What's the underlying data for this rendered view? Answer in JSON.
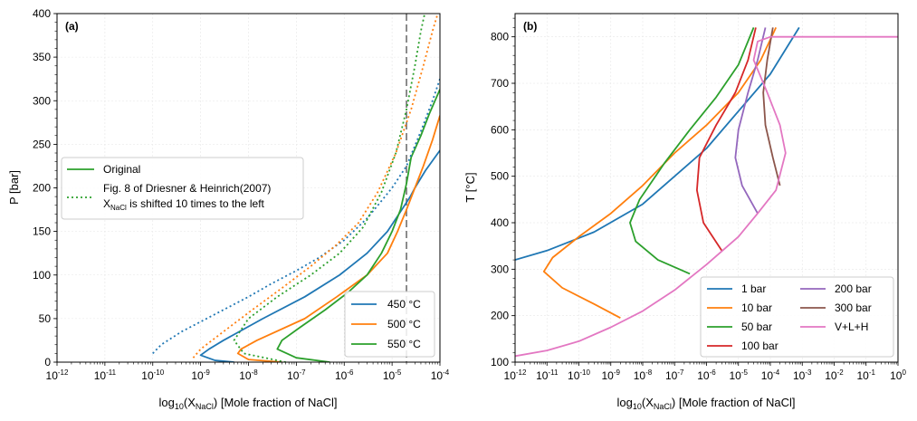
{
  "figure": {
    "colors": {
      "blue": "#1f77b4",
      "orange": "#ff7f0e",
      "green": "#2ca02c",
      "red": "#d62728",
      "purple": "#9467bd",
      "brown": "#8c564b",
      "pink": "#e377c2",
      "dashed_line": "#707070"
    }
  },
  "chart_data": [
    {
      "panel_label": "(a)",
      "type": "line",
      "xscale": "log",
      "xlim": [
        1e-12,
        0.0001
      ],
      "ylim": [
        0,
        400
      ],
      "xlabel_main": "log",
      "xlabel_main_sub": "10",
      "xlabel_paren_open": "(X",
      "xlabel_paren_sub": "NaCl",
      "xlabel_rest": ") [Mole fraction of NaCl]",
      "ylabel": "P [bar]",
      "x_ticks": [
        -12,
        -11,
        -10,
        -9,
        -8,
        -7,
        -6,
        -5,
        -4
      ],
      "y_ticks": [
        "0",
        "50",
        "100",
        "150",
        "200",
        "250",
        "300",
        "350",
        "400"
      ],
      "vertical_dashed_line_x": 2e-05,
      "grid": true,
      "legend_style": {
        "placement": "center-left",
        "original_label": "Original",
        "shifted_label_line1": "Fig. 8 of Driesner & Heinrich(2007)",
        "shifted_label_line2_pre": "X",
        "shifted_label_line2_sub": "NaCl",
        "shifted_label_line2_post": " is shifted 10 times to the left"
      },
      "legend_temps": {
        "placement": "lower-right",
        "entries": [
          {
            "label": "450 °C",
            "color": "#1f77b4"
          },
          {
            "label": "500 °C",
            "color": "#ff7f0e"
          },
          {
            "label": "550 °C",
            "color": "#2ca02c"
          }
        ]
      },
      "series": [
        {
          "name": "450 °C",
          "style": "solid",
          "color": "#1f77b4",
          "points": [
            [
              5e-09,
              0
            ],
            [
              2e-09,
              2
            ],
            [
              1e-09,
              8
            ],
            [
              1.5e-09,
              15
            ],
            [
              3e-09,
              25
            ],
            [
              2e-08,
              50
            ],
            [
              1.5e-07,
              75
            ],
            [
              8e-07,
              100
            ],
            [
              3e-06,
              125
            ],
            [
              8e-06,
              150
            ],
            [
              1.6e-05,
              175
            ],
            [
              2.4e-05,
              190
            ],
            [
              3e-05,
              200
            ],
            [
              5e-05,
              220
            ],
            [
              0.0001,
              243
            ]
          ]
        },
        {
          "name": "500 °C",
          "style": "solid",
          "color": "#ff7f0e",
          "points": [
            [
              5e-08,
              0
            ],
            [
              1e-08,
              3
            ],
            [
              6e-09,
              10
            ],
            [
              7e-09,
              15
            ],
            [
              1.5e-08,
              25
            ],
            [
              1.5e-07,
              50
            ],
            [
              7e-07,
              75
            ],
            [
              3e-06,
              100
            ],
            [
              8e-06,
              125
            ],
            [
              1.3e-05,
              150
            ],
            [
              2e-05,
              175
            ],
            [
              3e-05,
              200
            ],
            [
              4.5e-05,
              225
            ],
            [
              7e-05,
              255
            ],
            [
              0.0001,
              283
            ]
          ]
        },
        {
          "name": "550 °C",
          "style": "solid",
          "color": "#2ca02c",
          "points": [
            [
              5e-07,
              0
            ],
            [
              1e-07,
              5
            ],
            [
              4e-08,
              15
            ],
            [
              5e-08,
              25
            ],
            [
              1.2e-07,
              40
            ],
            [
              4e-07,
              60
            ],
            [
              1.2e-06,
              80
            ],
            [
              3e-06,
              100
            ],
            [
              6e-06,
              125
            ],
            [
              1e-05,
              150
            ],
            [
              1.5e-05,
              175
            ],
            [
              2e-05,
              205
            ],
            [
              2.5e-05,
              235
            ],
            [
              4e-05,
              260
            ],
            [
              6e-05,
              285
            ],
            [
              0.0001,
              313
            ]
          ]
        },
        {
          "name": "450 °C (Driesner & Heinrich 2007, shifted)",
          "style": "dotted",
          "color": "#1f77b4",
          "points": [
            [
              1e-10,
              10
            ],
            [
              1.5e-10,
              20
            ],
            [
              4e-10,
              35
            ],
            [
              2e-09,
              55
            ],
            [
              1e-08,
              75
            ],
            [
              3e-08,
              90
            ],
            [
              1e-07,
              105
            ],
            [
              3e-07,
              120
            ],
            [
              1e-06,
              140
            ],
            [
              3e-06,
              165
            ],
            [
              6e-06,
              185
            ],
            [
              1e-05,
              200
            ],
            [
              2e-05,
              225
            ],
            [
              4e-05,
              265
            ],
            [
              7e-05,
              300
            ],
            [
              0.0001,
              325
            ]
          ]
        },
        {
          "name": "500 °C (Driesner & Heinrich 2007, shifted)",
          "style": "dotted",
          "color": "#ff7f0e",
          "points": [
            [
              7e-10,
              5
            ],
            [
              1e-09,
              15
            ],
            [
              3e-09,
              35
            ],
            [
              1.2e-08,
              60
            ],
            [
              5e-08,
              85
            ],
            [
              2e-07,
              110
            ],
            [
              7e-07,
              135
            ],
            [
              2e-06,
              160
            ],
            [
              5e-06,
              195
            ],
            [
              1.2e-05,
              240
            ],
            [
              2.5e-05,
              290
            ],
            [
              4.5e-05,
              340
            ],
            [
              7e-05,
              380
            ],
            [
              9e-05,
              400
            ]
          ]
        },
        {
          "name": "550 °C (Driesner & Heinrich 2007, shifted)",
          "style": "dotted",
          "color": "#2ca02c",
          "points": [
            [
              6e-08,
              0
            ],
            [
              8e-09,
              10
            ],
            [
              5e-09,
              25
            ],
            [
              1e-08,
              50
            ],
            [
              4e-08,
              75
            ],
            [
              2e-07,
              100
            ],
            [
              8e-07,
              125
            ],
            [
              2.5e-06,
              155
            ],
            [
              6e-06,
              195
            ],
            [
              1.2e-05,
              240
            ],
            [
              2e-05,
              290
            ],
            [
              3e-05,
              340
            ],
            [
              4e-05,
              380
            ],
            [
              4.8e-05,
              400
            ]
          ]
        }
      ]
    },
    {
      "panel_label": "(b)",
      "type": "line",
      "xscale": "log",
      "xlim": [
        1e-12,
        1
      ],
      "ylim": [
        100,
        850
      ],
      "xlabel_main": "log",
      "xlabel_main_sub": "10",
      "xlabel_paren_open": "(X",
      "xlabel_paren_sub": "NaCl",
      "xlabel_rest": ") [Mole fraction of NaCl]",
      "ylabel": "T [°C]",
      "x_ticks": [
        -12,
        -11,
        -10,
        -9,
        -8,
        -7,
        -6,
        -5,
        -4,
        -3,
        -2,
        -1,
        0
      ],
      "y_ticks": [
        "100",
        "200",
        "300",
        "400",
        "500",
        "600",
        "700",
        "800"
      ],
      "grid": true,
      "legend": {
        "placement": "lower-right",
        "columns": 2,
        "entries": [
          {
            "label": "1 bar",
            "color": "#1f77b4"
          },
          {
            "label": "10 bar",
            "color": "#ff7f0e"
          },
          {
            "label": "50 bar",
            "color": "#2ca02c"
          },
          {
            "label": "100 bar",
            "color": "#d62728"
          },
          {
            "label": "200 bar",
            "color": "#9467bd"
          },
          {
            "label": "300 bar",
            "color": "#8c564b"
          },
          {
            "label": "V+L+H",
            "color": "#e377c2"
          }
        ]
      },
      "series": [
        {
          "name": "1 bar",
          "color": "#1f77b4",
          "points": [
            [
              1e-12,
              320
            ],
            [
              1e-11,
              340
            ],
            [
              3e-10,
              380
            ],
            [
              1e-08,
              440
            ],
            [
              1e-07,
              500
            ],
            [
              1e-06,
              560
            ],
            [
              1e-05,
              640
            ],
            [
              0.0001,
              720
            ],
            [
              0.0008,
              820
            ]
          ]
        },
        {
          "name": "10 bar",
          "color": "#ff7f0e",
          "points": [
            [
              2e-09,
              195
            ],
            [
              3e-10,
              225
            ],
            [
              3e-11,
              260
            ],
            [
              8e-12,
              295
            ],
            [
              1.5e-11,
              325
            ],
            [
              1e-10,
              370
            ],
            [
              1e-09,
              420
            ],
            [
              1e-08,
              480
            ],
            [
              1e-07,
              550
            ],
            [
              1e-06,
              610
            ],
            [
              1e-05,
              680
            ],
            [
              5e-05,
              750
            ],
            [
              0.00015,
              820
            ]
          ]
        },
        {
          "name": "50 bar",
          "color": "#2ca02c",
          "points": [
            [
              3e-07,
              290
            ],
            [
              3e-08,
              320
            ],
            [
              6e-09,
              360
            ],
            [
              4e-09,
              400
            ],
            [
              8e-09,
              450
            ],
            [
              5e-08,
              530
            ],
            [
              3e-07,
              600
            ],
            [
              2e-06,
              670
            ],
            [
              1e-05,
              740
            ],
            [
              3e-05,
              820
            ]
          ]
        },
        {
          "name": "100 bar",
          "color": "#d62728",
          "points": [
            [
              3e-06,
              340
            ],
            [
              8e-07,
              400
            ],
            [
              5e-07,
              470
            ],
            [
              6e-07,
              540
            ],
            [
              2e-06,
              610
            ],
            [
              8e-06,
              680
            ],
            [
              2e-05,
              750
            ],
            [
              3.5e-05,
              820
            ]
          ]
        },
        {
          "name": "200 bar",
          "color": "#9467bd",
          "points": [
            [
              4e-05,
              420
            ],
            [
              1.3e-05,
              480
            ],
            [
              8e-06,
              540
            ],
            [
              1e-05,
              600
            ],
            [
              2e-05,
              680
            ],
            [
              4e-05,
              750
            ],
            [
              7e-05,
              820
            ]
          ]
        },
        {
          "name": "300 bar",
          "color": "#8c564b",
          "points": [
            [
              0.0002,
              480
            ],
            [
              0.00012,
              540
            ],
            [
              7e-05,
              610
            ],
            [
              6e-05,
              680
            ],
            [
              8e-05,
              750
            ],
            [
              0.00012,
              820
            ]
          ]
        },
        {
          "name": "V+L+H",
          "color": "#e377c2",
          "points": [
            [
              1e-12,
              113
            ],
            [
              1e-11,
              125
            ],
            [
              1e-10,
              145
            ],
            [
              1e-09,
              175
            ],
            [
              1e-08,
              210
            ],
            [
              1e-07,
              255
            ],
            [
              1e-06,
              310
            ],
            [
              1e-05,
              370
            ],
            [
              4e-05,
              420
            ],
            [
              0.00015,
              470
            ],
            [
              0.0003,
              550
            ],
            [
              0.0002,
              610
            ],
            [
              8e-05,
              680
            ],
            [
              3e-05,
              750
            ],
            [
              4e-05,
              790
            ],
            [
              0.0001,
              800
            ],
            [
              1,
              800
            ]
          ]
        }
      ]
    }
  ]
}
